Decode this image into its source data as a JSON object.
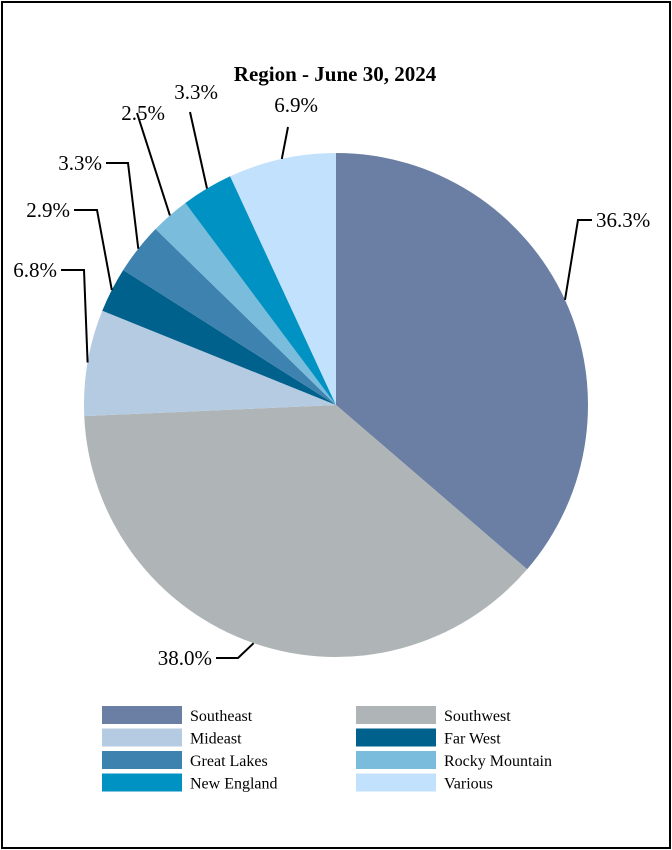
{
  "chart_data": {
    "type": "pie",
    "title": "Region - June 30, 2024",
    "slices": [
      {
        "name": "Southeast",
        "value": 36.3,
        "label": "36.3%",
        "color": "#6a7fa3"
      },
      {
        "name": "Southwest",
        "value": 38.0,
        "label": "38.0%",
        "color": "#afb5b7"
      },
      {
        "name": "Mideast",
        "value": 6.8,
        "label": "6.8%",
        "color": "#b5cbe2"
      },
      {
        "name": "Far West",
        "value": 2.9,
        "label": "2.9%",
        "color": "#00618c"
      },
      {
        "name": "Great Lakes",
        "value": 3.3,
        "label": "3.3%",
        "color": "#3e82b0"
      },
      {
        "name": "Rocky Mountain",
        "value": 2.5,
        "label": "2.5%",
        "color": "#7abcdb"
      },
      {
        "name": "New England",
        "value": 3.3,
        "label": "3.3%",
        "color": "#0092c3"
      },
      {
        "name": "Various",
        "value": 6.9,
        "label": "6.9%",
        "color": "#c1e1fc"
      }
    ],
    "legend_position": "bottom",
    "legend_order": [
      "Southeast",
      "Southwest",
      "Mideast",
      "Far West",
      "Great Lakes",
      "Rocky Mountain",
      "New England",
      "Various"
    ]
  }
}
